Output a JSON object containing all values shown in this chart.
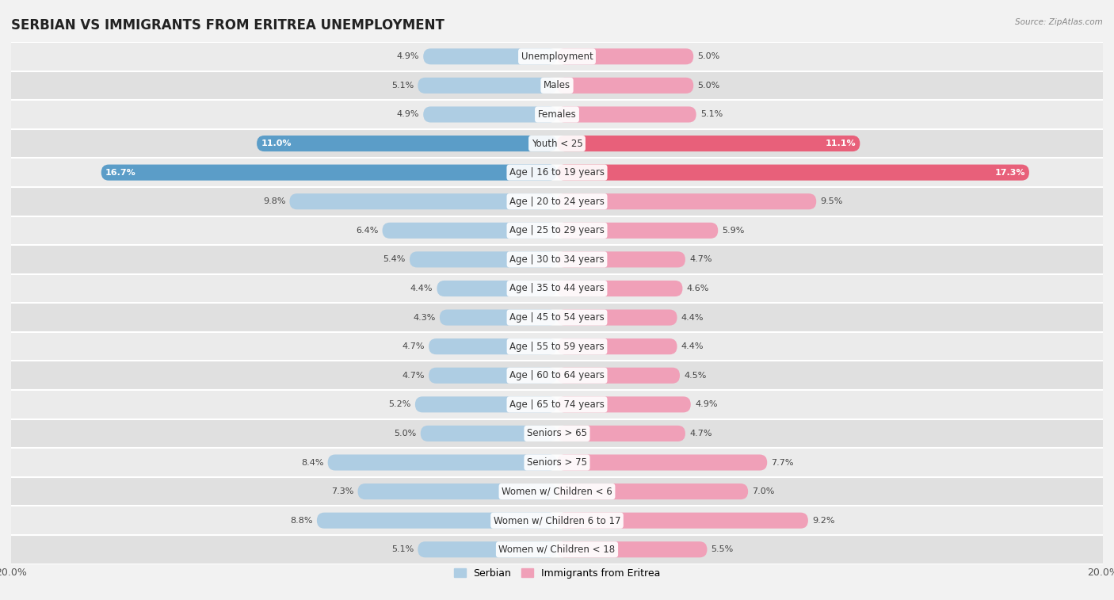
{
  "title": "SERBIAN VS IMMIGRANTS FROM ERITREA UNEMPLOYMENT",
  "source": "Source: ZipAtlas.com",
  "categories": [
    "Unemployment",
    "Males",
    "Females",
    "Youth < 25",
    "Age | 16 to 19 years",
    "Age | 20 to 24 years",
    "Age | 25 to 29 years",
    "Age | 30 to 34 years",
    "Age | 35 to 44 years",
    "Age | 45 to 54 years",
    "Age | 55 to 59 years",
    "Age | 60 to 64 years",
    "Age | 65 to 74 years",
    "Seniors > 65",
    "Seniors > 75",
    "Women w/ Children < 6",
    "Women w/ Children 6 to 17",
    "Women w/ Children < 18"
  ],
  "serbian_values": [
    4.9,
    5.1,
    4.9,
    11.0,
    16.7,
    9.8,
    6.4,
    5.4,
    4.4,
    4.3,
    4.7,
    4.7,
    5.2,
    5.0,
    8.4,
    7.3,
    8.8,
    5.1
  ],
  "eritrea_values": [
    5.0,
    5.0,
    5.1,
    11.1,
    17.3,
    9.5,
    5.9,
    4.7,
    4.6,
    4.4,
    4.4,
    4.5,
    4.9,
    4.7,
    7.7,
    7.0,
    9.2,
    5.5
  ],
  "serbian_color": "#aecde3",
  "eritrea_color": "#f0a0b8",
  "highlight_serbian_color": "#5b9dc8",
  "highlight_eritrea_color": "#e8607a",
  "max_value": 20.0,
  "bar_height": 0.55,
  "background_color": "#f2f2f2",
  "row_color_light": "#ebebeb",
  "row_color_dark": "#e0e0e0",
  "highlight_rows": [
    3,
    4
  ],
  "label_fontsize": 8.5,
  "title_fontsize": 12,
  "value_fontsize": 8,
  "legend_fontsize": 9
}
